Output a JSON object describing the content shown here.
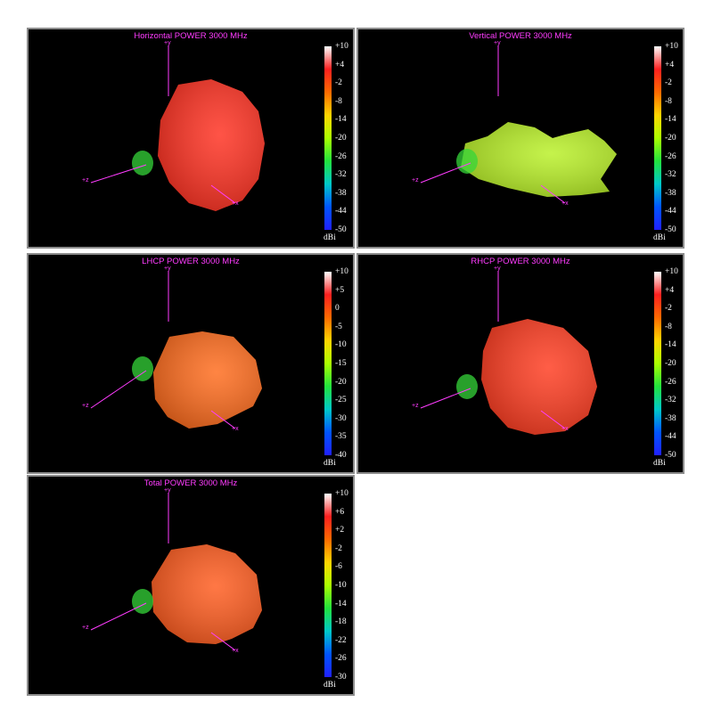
{
  "colorbar": {
    "gradient": [
      "#ffffff",
      "#ff1f1f",
      "#ff6a00",
      "#ffd400",
      "#aaff00",
      "#22e23d",
      "#00c8c8",
      "#0055ff",
      "#2020ff"
    ]
  },
  "chart_data": [
    {
      "type": "3d-radiation-pattern",
      "title": "Horizontal POWER 3000  MHz",
      "axes": [
        "+y",
        "+z",
        "+x"
      ],
      "colorbar_ticks": [
        "+10",
        "+4",
        "-2",
        "-8",
        "-14",
        "-20",
        "-26",
        "-32",
        "-38",
        "-44",
        "-50"
      ],
      "colorbar_unit": "dBi",
      "colorbar_range": [
        -50,
        10
      ],
      "dominant_color": "#ff2e1e"
    },
    {
      "type": "3d-radiation-pattern",
      "title": "Vertical POWER 3000  MHz",
      "axes": [
        "+y",
        "+z",
        "+x"
      ],
      "colorbar_ticks": [
        "+10",
        "+4",
        "-2",
        "-8",
        "-14",
        "-20",
        "-26",
        "-32",
        "-38",
        "-44",
        "-50"
      ],
      "colorbar_unit": "dBi",
      "colorbar_range": [
        -50,
        10
      ],
      "dominant_color": "#b8f024"
    },
    {
      "type": "3d-radiation-pattern",
      "title": "LHCP POWER 3000  MHz",
      "axes": [
        "+y",
        "+z",
        "+x"
      ],
      "colorbar_ticks": [
        "+10",
        "+5",
        "0",
        "-5",
        "-10",
        "-15",
        "-20",
        "-25",
        "-30",
        "-35",
        "-40"
      ],
      "colorbar_unit": "dBi",
      "colorbar_range": [
        -40,
        10
      ],
      "dominant_color": "#ff6a1a"
    },
    {
      "type": "3d-radiation-pattern",
      "title": "RHCP POWER 3000  MHz",
      "axes": [
        "+y",
        "+z",
        "+x"
      ],
      "colorbar_ticks": [
        "+10",
        "+4",
        "-2",
        "-8",
        "-14",
        "-20",
        "-26",
        "-32",
        "-38",
        "-44",
        "-50"
      ],
      "colorbar_unit": "dBi",
      "colorbar_range": [
        -50,
        10
      ],
      "dominant_color": "#ff3a1e"
    },
    {
      "type": "3d-radiation-pattern",
      "title": "Total POWER 3000  MHz",
      "axes": [
        "+y",
        "+z",
        "+x"
      ],
      "colorbar_ticks": [
        "+10",
        "+6",
        "+2",
        "-2",
        "-6",
        "-10",
        "-14",
        "-18",
        "-22",
        "-26",
        "-30"
      ],
      "colorbar_unit": "dBi",
      "colorbar_range": [
        -30,
        10
      ],
      "dominant_color": "#ff5a1c"
    }
  ]
}
